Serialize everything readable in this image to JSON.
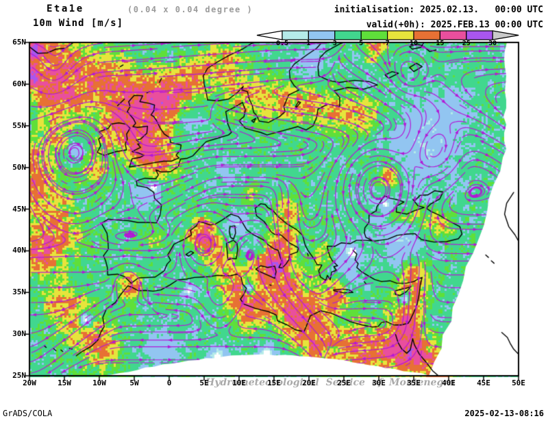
{
  "header": {
    "model": "Eta1e",
    "resolution": "(0.04 x 0.04 degree )",
    "product": "10m Wind [m/s]",
    "initialisation": "initialisation: 2025.02.13.   00:00 UTC",
    "valid": "valid(+0h): 2025.FEB.13 00:00 UTC"
  },
  "colorbar": {
    "tick_labels": [
      "0.5",
      "1",
      "3",
      "5",
      "7",
      "10",
      "15",
      "25",
      "30"
    ],
    "segment_colors": [
      "#b5ebe9",
      "#92c5f1",
      "#41d78e",
      "#5fdf3a",
      "#e7e43c",
      "#e77134",
      "#e94f9d",
      "#a956ee"
    ],
    "left_arrow_color": "#ffffff",
    "right_arrow_color": "#c9c9c9",
    "outline_color": "#000000"
  },
  "axes": {
    "lat_labels": [
      "65N",
      "60N",
      "55N",
      "50N",
      "45N",
      "40N",
      "35N",
      "30N",
      "25N"
    ],
    "lon_labels": [
      "20W",
      "15W",
      "10W",
      "5W",
      "0",
      "5E",
      "10E",
      "15E",
      "20E",
      "25E",
      "30E",
      "35E",
      "40E",
      "45E",
      "50E"
    ]
  },
  "map": {
    "streamline_color": "#b318d6",
    "coastline_color": "#000000",
    "frame_color": "#000000",
    "void_color": "#ffffff",
    "speed_thresholds": [
      0.5,
      1,
      3,
      5,
      7,
      10,
      15,
      25,
      30
    ]
  },
  "watermark": "Hydrometeorological Service of Montenegro",
  "footer": {
    "left": "GrADS/COLA",
    "right": "2025-02-13-08:16"
  }
}
